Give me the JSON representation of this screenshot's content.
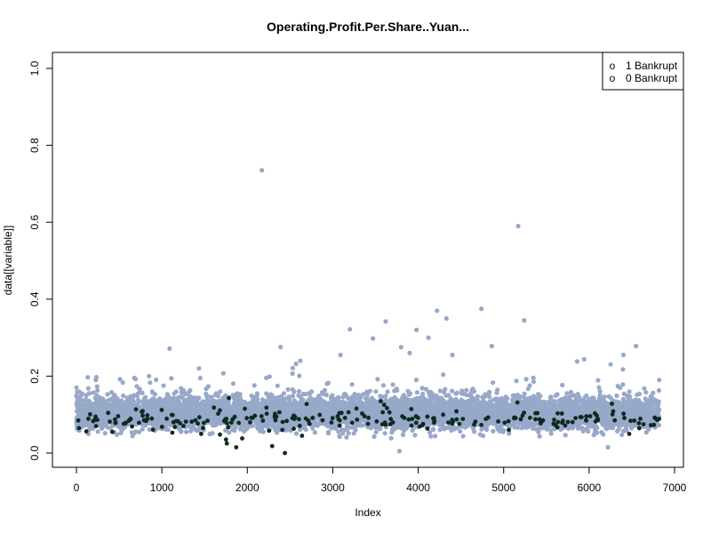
{
  "chart_data": {
    "type": "scatter",
    "title": "Operating.Profit.Per.Share..Yuan...",
    "xlabel": "Index",
    "ylabel": "data[[variable]]",
    "xlim": [
      0,
      7000
    ],
    "ylim": [
      0,
      1.0
    ],
    "x_ticks": [
      "0",
      "1000",
      "2000",
      "3000",
      "4000",
      "5000",
      "6000",
      "7000"
    ],
    "y_ticks": [
      "0.0",
      "0.2",
      "0.4",
      "0.6",
      "0.8",
      "1.0"
    ],
    "grid": false,
    "legend": {
      "position": "top-right",
      "entries": [
        {
          "symbol": "o",
          "label": "1 Bankrupt"
        },
        {
          "symbol": "o",
          "label": "0 Bankrupt"
        }
      ]
    },
    "series": [
      {
        "name": "0 Bankrupt",
        "color": "#98a8c8",
        "n_points": 6819,
        "band_center": 0.105,
        "band_spread": 0.02,
        "x_range": [
          0,
          6819
        ],
        "notable_points": [
          {
            "x": 2170,
            "y": 0.735
          },
          {
            "x": 5170,
            "y": 0.59
          },
          {
            "x": 5240,
            "y": 0.345
          },
          {
            "x": 4740,
            "y": 0.375
          },
          {
            "x": 4220,
            "y": 0.37
          },
          {
            "x": 4330,
            "y": 0.35
          },
          {
            "x": 3620,
            "y": 0.342
          },
          {
            "x": 3200,
            "y": 0.322
          },
          {
            "x": 3980,
            "y": 0.32
          },
          {
            "x": 4120,
            "y": 0.3
          },
          {
            "x": 3470,
            "y": 0.298
          },
          {
            "x": 6550,
            "y": 0.278
          },
          {
            "x": 4860,
            "y": 0.278
          },
          {
            "x": 3800,
            "y": 0.275
          },
          {
            "x": 3090,
            "y": 0.255
          },
          {
            "x": 4400,
            "y": 0.255
          },
          {
            "x": 3900,
            "y": 0.26
          },
          {
            "x": 2620,
            "y": 0.24
          },
          {
            "x": 5860,
            "y": 0.238
          },
          {
            "x": 2570,
            "y": 0.232
          },
          {
            "x": 1450,
            "y": 0.195
          },
          {
            "x": 510,
            "y": 0.192
          },
          {
            "x": 850,
            "y": 0.2
          },
          {
            "x": 6820,
            "y": 0.19
          },
          {
            "x": 3780,
            "y": 0.005
          },
          {
            "x": 6220,
            "y": 0.015
          }
        ]
      },
      {
        "name": "1 Bankrupt",
        "color": "#0d2a22",
        "n_points": 220,
        "band_center": 0.088,
        "band_spread": 0.012,
        "x_range": [
          0,
          6819
        ],
        "notable_points": [
          {
            "x": 2440,
            "y": 0.0
          },
          {
            "x": 1870,
            "y": 0.015
          },
          {
            "x": 2290,
            "y": 0.018
          },
          {
            "x": 1760,
            "y": 0.025
          },
          {
            "x": 1750,
            "y": 0.035
          },
          {
            "x": 1940,
            "y": 0.038
          },
          {
            "x": 2640,
            "y": 0.045
          },
          {
            "x": 1680,
            "y": 0.048
          },
          {
            "x": 1460,
            "y": 0.05
          },
          {
            "x": 6470,
            "y": 0.05
          },
          {
            "x": 420,
            "y": 0.055
          },
          {
            "x": 2410,
            "y": 0.06
          },
          {
            "x": 5060,
            "y": 0.06
          },
          {
            "x": 30,
            "y": 0.065
          },
          {
            "x": 230,
            "y": 0.07
          }
        ]
      }
    ]
  }
}
